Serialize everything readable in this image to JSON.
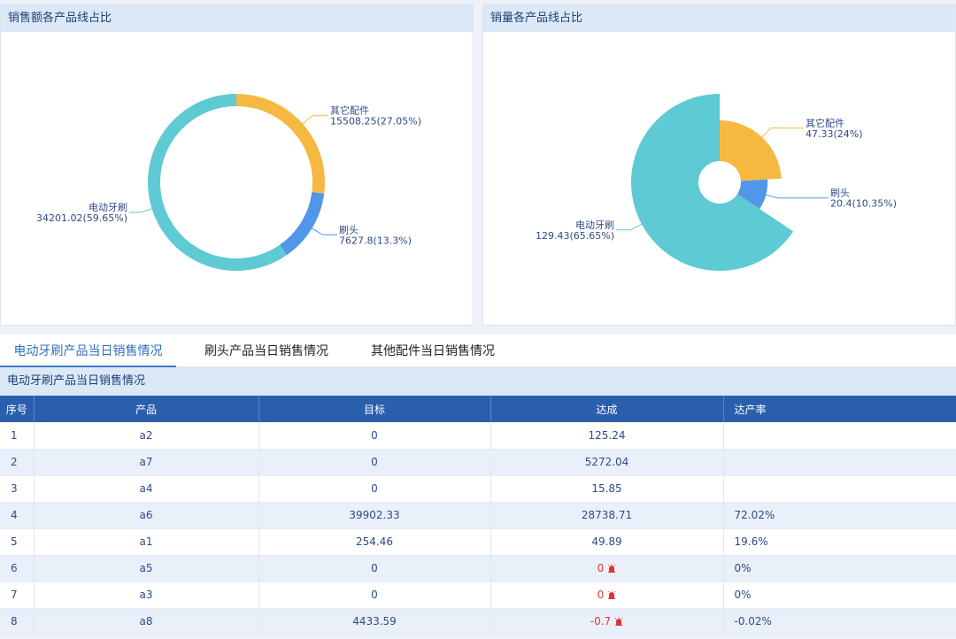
{
  "charts": {
    "left": {
      "title": "销售额各产品线占比",
      "chart_data": {
        "type": "pie",
        "style": "donut",
        "title": "销售额各产品线占比",
        "slices": [
          {
            "name": "其它配件",
            "value": 15508.25,
            "percent": "27.05%",
            "label": "15508.25(27.05%)",
            "color": "#f5b942"
          },
          {
            "name": "刷头",
            "value": 7627.8,
            "percent": "13.3%",
            "label": "7627.8(13.3%)",
            "color": "#5196e8"
          },
          {
            "name": "电动牙刷",
            "value": 34201.02,
            "percent": "59.65%",
            "label": "34201.02(59.65%)",
            "color": "#5ecad3"
          }
        ]
      }
    },
    "right": {
      "title": "销量各产品线占比",
      "chart_data": {
        "type": "pie",
        "style": "rose",
        "title": "销量各产品线占比",
        "slices": [
          {
            "name": "其它配件",
            "value": 47.33,
            "percent": "24%",
            "label": "47.33(24%)",
            "color": "#f5b942"
          },
          {
            "name": "刷头",
            "value": 20.4,
            "percent": "10.35%",
            "label": "20.4(10.35%)",
            "color": "#5196e8"
          },
          {
            "name": "电动牙刷",
            "value": 129.43,
            "percent": "65.65%",
            "label": "129.43(65.65%)",
            "color": "#5ecad3"
          }
        ]
      }
    }
  },
  "tabs": [
    {
      "label": "电动牙刷产品当日销售情况",
      "active": true
    },
    {
      "label": "刷头产品当日销售情况",
      "active": false
    },
    {
      "label": "其他配件当日销售情况",
      "active": false
    }
  ],
  "section_title": "电动牙刷产品当日销售情况",
  "table": {
    "headers": [
      "序号",
      "产品",
      "目标",
      "达成",
      "达产率"
    ],
    "rows": [
      {
        "idx": "1",
        "product": "a2",
        "target": "0",
        "achieved": "125.24",
        "rate": "",
        "alert": false
      },
      {
        "idx": "2",
        "product": "a7",
        "target": "0",
        "achieved": "5272.04",
        "rate": "",
        "alert": false
      },
      {
        "idx": "3",
        "product": "a4",
        "target": "0",
        "achieved": "15.85",
        "rate": "",
        "alert": false
      },
      {
        "idx": "4",
        "product": "a6",
        "target": "39902.33",
        "achieved": "28738.71",
        "rate": "72.02%",
        "alert": false
      },
      {
        "idx": "5",
        "product": "a1",
        "target": "254.46",
        "achieved": "49.89",
        "rate": "19.6%",
        "alert": false
      },
      {
        "idx": "6",
        "product": "a5",
        "target": "0",
        "achieved": "0",
        "rate": "0%",
        "alert": true
      },
      {
        "idx": "7",
        "product": "a3",
        "target": "0",
        "achieved": "0",
        "rate": "0%",
        "alert": true
      },
      {
        "idx": "8",
        "product": "a8",
        "target": "4433.59",
        "achieved": "-0.7",
        "rate": "-0.02%",
        "alert": true
      }
    ],
    "alert_color": "#e0343a",
    "alert_icon": "alarm-icon"
  }
}
